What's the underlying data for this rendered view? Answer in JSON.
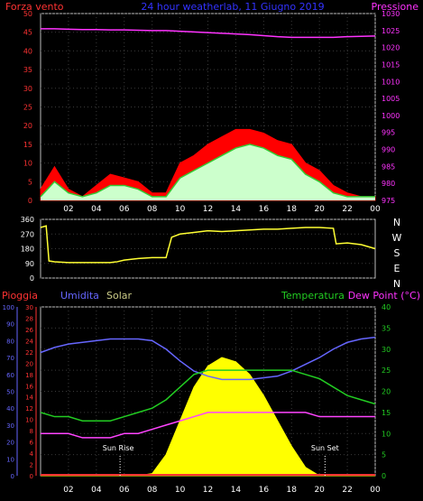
{
  "header": {
    "left_label": "Forza vento",
    "title": "24 hour weatherlab, 11 Giugno 2019",
    "right_label": "Pressione"
  },
  "wind_dir_labels": [
    "N",
    "W",
    "S",
    "E",
    "N"
  ],
  "bottom_header": {
    "rain": "Pioggia",
    "humidity": "Umidita",
    "solar": "Solar",
    "temperature": "Temperatura",
    "dewpoint": "Dew Point (°C)"
  },
  "annotations": {
    "sunrise": "Sun Rise",
    "sunset": "Sun Set"
  },
  "colors": {
    "wind_gust": "#ff0000",
    "wind_avg": "#33cc33",
    "wind_fill": "#ccffcc",
    "pressure": "#ff33ff",
    "direction": "#ffff33",
    "humidity": "#6666ff",
    "temperature": "#22cc22",
    "dewpoint": "#ff44ff",
    "solar": "#ffff00",
    "rain": "#ff3333",
    "grid": "#3a3a3a"
  },
  "chart_data": [
    {
      "type": "line",
      "series_style": [
        "area",
        "line",
        "line"
      ],
      "x_ticks": [
        "02",
        "04",
        "06",
        "08",
        "10",
        "12",
        "14",
        "16",
        "18",
        "20",
        "22",
        "00"
      ],
      "y_left": {
        "ticks": [
          0,
          5,
          10,
          15,
          20,
          25,
          30,
          35,
          40,
          45,
          50
        ],
        "ylim": [
          0,
          50
        ]
      },
      "y_right": {
        "ticks": [
          975,
          980,
          985,
          990,
          995,
          1000,
          1005,
          1010,
          1015,
          1020,
          1025,
          1030
        ],
        "ylim": [
          975,
          1030
        ]
      },
      "x_hours": [
        0,
        1,
        2,
        3,
        4,
        5,
        6,
        7,
        8,
        9,
        10,
        11,
        12,
        13,
        14,
        15,
        16,
        17,
        18,
        19,
        20,
        21,
        22,
        23,
        24
      ],
      "series": [
        {
          "values": [
            3,
            9,
            3,
            1,
            4,
            7,
            6,
            5,
            2,
            2,
            10,
            12,
            15,
            17,
            19,
            19,
            18,
            16,
            15,
            10,
            8,
            4,
            2,
            1,
            1
          ]
        },
        {
          "values": [
            1,
            5,
            2,
            1,
            2,
            4,
            4,
            3,
            1,
            1,
            6,
            8,
            10,
            12,
            14,
            15,
            14,
            12,
            11,
            7,
            5,
            2,
            1,
            1,
            1
          ]
        },
        {
          "values": [
            1025.5,
            1025.5,
            1025.4,
            1025.3,
            1025.3,
            1025.2,
            1025.2,
            1025.1,
            1025,
            1025,
            1024.8,
            1024.6,
            1024.4,
            1024.2,
            1024,
            1023.8,
            1023.5,
            1023.2,
            1023,
            1023,
            1023,
            1023,
            1023.2,
            1023.3,
            1023.4
          ]
        }
      ]
    },
    {
      "type": "line",
      "y_ticks": [
        0,
        90,
        180,
        270,
        360
      ],
      "ylim": [
        0,
        360
      ],
      "x_hours": [
        0,
        0.4,
        0.6,
        1,
        2,
        3,
        4,
        5,
        5.5,
        6,
        7,
        8,
        9,
        9.4,
        10,
        11,
        12,
        13,
        14,
        15,
        16,
        17,
        18,
        19,
        20,
        21,
        21.2,
        22,
        23,
        24
      ],
      "series": [
        {
          "values": [
            310,
            320,
            105,
            100,
            95,
            95,
            95,
            95,
            100,
            110,
            120,
            125,
            125,
            250,
            270,
            280,
            290,
            285,
            290,
            295,
            300,
            300,
            305,
            310,
            310,
            305,
            210,
            215,
            205,
            180
          ]
        }
      ]
    },
    {
      "type": "line",
      "series_style": [
        "line",
        "line",
        "line",
        "area",
        "bar"
      ],
      "x_ticks": [
        "02",
        "04",
        "06",
        "08",
        "10",
        "12",
        "14",
        "16",
        "18",
        "20",
        "22",
        "00"
      ],
      "y_humidity": {
        "ticks": [
          0,
          10,
          20,
          30,
          40,
          50,
          60,
          70,
          80,
          90,
          100
        ],
        "ylim": [
          0,
          100
        ]
      },
      "y_rain": {
        "ticks": [
          0,
          2,
          4,
          6,
          8,
          10,
          12,
          14,
          16,
          18,
          20,
          22,
          24,
          26,
          28,
          30
        ],
        "ylim": [
          0,
          30
        ]
      },
      "y_temp": {
        "ticks": [
          0,
          5,
          10,
          15,
          20,
          25,
          30,
          35,
          40
        ],
        "ylim": [
          0,
          40
        ]
      },
      "x_hours": [
        0,
        1,
        2,
        3,
        4,
        5,
        6,
        7,
        8,
        9,
        10,
        11,
        12,
        13,
        14,
        15,
        16,
        17,
        18,
        19,
        20,
        21,
        22,
        23,
        24
      ],
      "series": [
        {
          "values": [
            73,
            76,
            78,
            79,
            80,
            81,
            81,
            81,
            80,
            75,
            68,
            62,
            59,
            57,
            57,
            57,
            58,
            59,
            62,
            66,
            70,
            75,
            79,
            81,
            82
          ]
        },
        {
          "values": [
            15,
            14,
            14,
            13,
            13,
            13,
            14,
            15,
            16,
            18,
            21,
            24,
            25,
            25,
            25,
            25,
            25,
            25,
            25,
            24,
            23,
            21,
            19,
            18,
            17
          ]
        },
        {
          "values": [
            10,
            10,
            10,
            9,
            9,
            9,
            10,
            10,
            11,
            12,
            13,
            14,
            15,
            15,
            15,
            15,
            15,
            15,
            15,
            15,
            14,
            14,
            14,
            14,
            14
          ]
        },
        {
          "values": [
            0,
            0,
            0,
            0,
            0,
            0,
            0,
            0,
            0.5,
            5,
            13,
            21,
            26,
            28,
            27,
            24,
            19,
            13,
            7,
            2,
            0,
            0,
            0,
            0,
            0
          ]
        },
        {
          "values": [
            0,
            0,
            0,
            0,
            0,
            0,
            0,
            0,
            0,
            0,
            0,
            0,
            0,
            0,
            0,
            0,
            0,
            0,
            0,
            0,
            0,
            0,
            0,
            0,
            0
          ]
        }
      ],
      "sunrise_hour": 5.7,
      "sunset_hour": 20.4
    }
  ]
}
